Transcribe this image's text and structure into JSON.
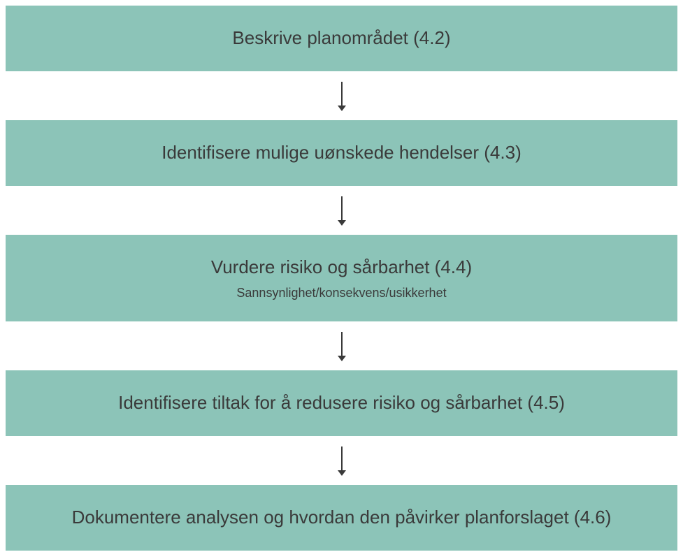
{
  "flowchart": {
    "type": "flowchart",
    "orientation": "vertical",
    "background_color": "#ffffff",
    "box_color": "#8cc4b8",
    "text_color": "#3a3a3a",
    "arrow_color": "#3a3a3a",
    "title_fontsize": 26,
    "subtitle_fontsize": 18,
    "box_padding": 30,
    "arrow_gap_height": 70,
    "arrow_line_height": 40,
    "steps": [
      {
        "title": "Beskrive planområdet (4.2)",
        "subtitle": null
      },
      {
        "title": "Identifisere mulige uønskede hendelser (4.3)",
        "subtitle": null
      },
      {
        "title": "Vurdere risiko og sårbarhet (4.4)",
        "subtitle": "Sannsynlighet/konsekvens/usikkerhet"
      },
      {
        "title": "Identifisere tiltak for å redusere risiko og sårbarhet (4.5)",
        "subtitle": null
      },
      {
        "title": "Dokumentere analysen og hvordan den påvirker planforslaget (4.6)",
        "subtitle": null
      }
    ]
  }
}
